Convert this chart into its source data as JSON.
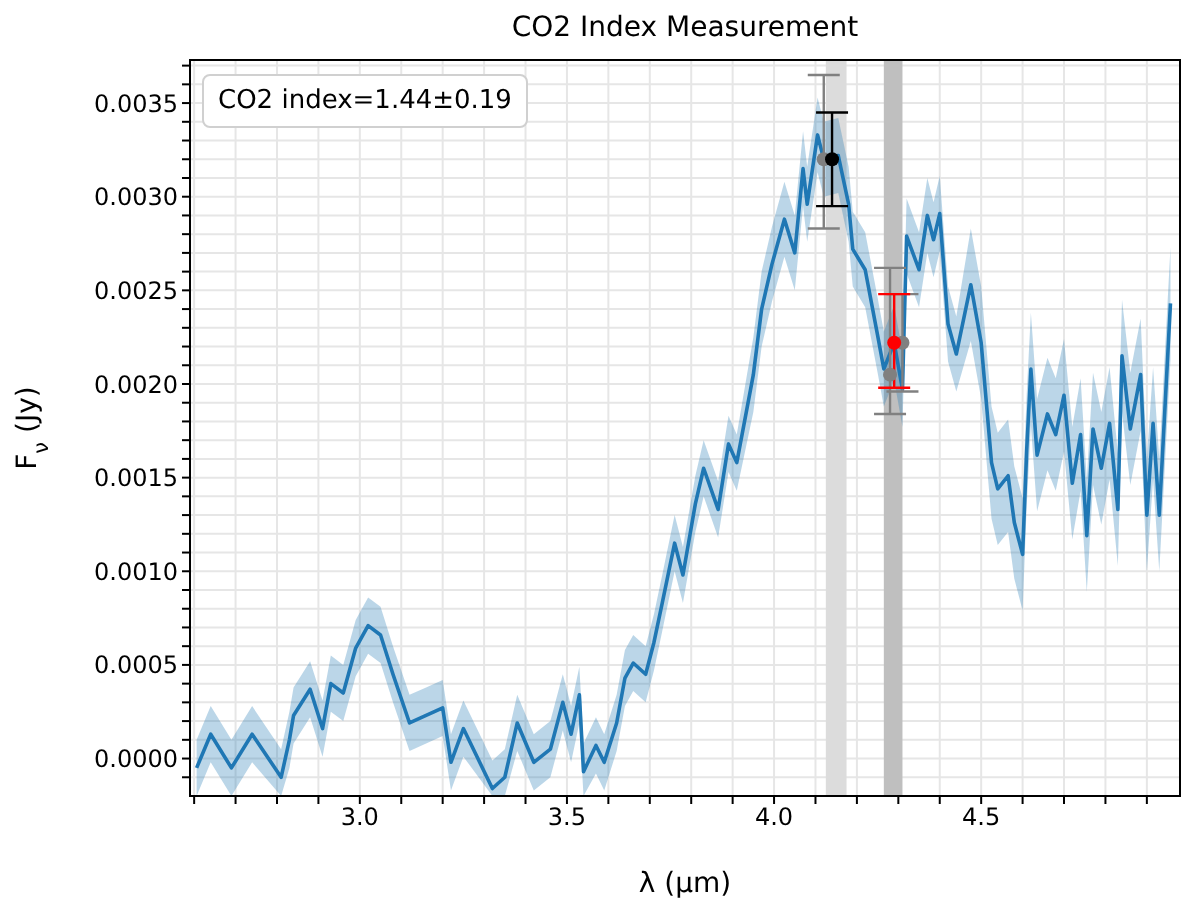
{
  "chart_data": {
    "type": "line",
    "title": "CO2 Index Measurement",
    "xlabel": "λ (μm)",
    "ylabel": "F$_{ν}$ (Jy)",
    "annotations": [
      "CO2 index=1.44±0.19"
    ],
    "grid": true,
    "xlim": [
      2.59,
      4.98
    ],
    "xticks": [
      {
        "value": 2.6,
        "label": null
      },
      {
        "value": 2.7,
        "label": null
      },
      {
        "value": 2.8,
        "label": null
      },
      {
        "value": 2.9,
        "label": null
      },
      {
        "value": 3,
        "label": "3.0"
      },
      {
        "value": 3.1,
        "label": null
      },
      {
        "value": 3.2,
        "label": null
      },
      {
        "value": 3.3,
        "label": null
      },
      {
        "value": 3.4,
        "label": null
      },
      3.5,
      {
        "value": 3.6,
        "label": null
      },
      {
        "value": 3.7,
        "label": null
      },
      {
        "value": 3.8,
        "label": null
      },
      {
        "value": 3.9,
        "label": null
      },
      {
        "value": 4,
        "label": "4.0"
      },
      {
        "value": 4.1,
        "label": null
      },
      {
        "value": 4.2,
        "label": null
      },
      {
        "value": 4.3,
        "label": null
      },
      {
        "value": 4.4,
        "label": null
      },
      4.5,
      {
        "value": 4.6,
        "label": null
      },
      {
        "value": 4.7,
        "label": null
      },
      {
        "value": 4.8,
        "label": null
      },
      {
        "value": 4.9,
        "label": null
      }
    ],
    "ylim": [
      -0.0002,
      0.00373
    ],
    "yticks": [
      {
        "value": -0.0001,
        "label": null
      },
      {
        "value": 0,
        "label": "0.0000"
      },
      {
        "value": 0.0001,
        "label": null
      },
      {
        "value": 0.0002,
        "label": null
      },
      {
        "value": 0.0003,
        "label": null
      },
      {
        "value": 0.0004,
        "label": null
      },
      {
        "value": 0.0005,
        "label": "0.0005"
      },
      {
        "value": 0.0006,
        "label": null
      },
      {
        "value": 0.0007,
        "label": null
      },
      {
        "value": 0.0008,
        "label": null
      },
      {
        "value": 0.0009,
        "label": null
      },
      {
        "value": 0.001,
        "label": "0.0010"
      },
      {
        "value": 0.0011,
        "label": null
      },
      {
        "value": 0.0012,
        "label": null
      },
      {
        "value": 0.0013,
        "label": null
      },
      {
        "value": 0.0014,
        "label": null
      },
      {
        "value": 0.0015,
        "label": "0.0015"
      },
      {
        "value": 0.0016,
        "label": null
      },
      {
        "value": 0.0017,
        "label": null
      },
      {
        "value": 0.0018,
        "label": null
      },
      {
        "value": 0.0019,
        "label": null
      },
      {
        "value": 0.002,
        "label": "0.0020"
      },
      {
        "value": 0.0021,
        "label": null
      },
      {
        "value": 0.0022,
        "label": null
      },
      {
        "value": 0.0023,
        "label": null
      },
      {
        "value": 0.0024,
        "label": null
      },
      {
        "value": 0.0025,
        "label": "0.0025"
      },
      {
        "value": 0.0026,
        "label": null
      },
      {
        "value": 0.0027,
        "label": null
      },
      {
        "value": 0.0028,
        "label": null
      },
      {
        "value": 0.0029,
        "label": null
      },
      {
        "value": 0.003,
        "label": "0.0030"
      },
      {
        "value": 0.0031,
        "label": null
      },
      {
        "value": 0.0032,
        "label": null
      },
      {
        "value": 0.0033,
        "label": null
      },
      {
        "value": 0.0034,
        "label": null
      },
      {
        "value": 0.0035,
        "label": "0.0035"
      },
      {
        "value": 0.0036,
        "label": null
      },
      {
        "value": 0.0037,
        "label": null
      }
    ],
    "bands": [
      {
        "axis": "x",
        "from": 4.125,
        "to": 4.175,
        "color": "#dcdcdc"
      },
      {
        "axis": "x",
        "from": 4.265,
        "to": 4.31,
        "color": "#bfbfbf"
      }
    ],
    "series": [
      {
        "color": "#1f77b4",
        "marker": "none",
        "line_style": "solid",
        "x": [
          2.606,
          2.64,
          2.69,
          2.74,
          2.81,
          2.83,
          2.84,
          2.88,
          2.91,
          2.93,
          2.96,
          2.99,
          3.02,
          3.05,
          3.08,
          3.12,
          3.16,
          3.2,
          3.22,
          3.25,
          3.32,
          3.35,
          3.38,
          3.42,
          3.46,
          3.49,
          3.51,
          3.53,
          3.54,
          3.57,
          3.59,
          3.62,
          3.64,
          3.66,
          3.69,
          3.71,
          3.73,
          3.76,
          3.78,
          3.81,
          3.83,
          3.865,
          3.89,
          3.91,
          3.95,
          3.97,
          3.995,
          4.025,
          4.05,
          4.07,
          4.08,
          4.105,
          4.12,
          4.155,
          4.18,
          4.19,
          4.22,
          4.25,
          4.265,
          4.29,
          4.31,
          4.32,
          4.35,
          4.37,
          4.385,
          4.4,
          4.42,
          4.44,
          4.475,
          4.5,
          4.525,
          4.54,
          4.565,
          4.58,
          4.6,
          4.61,
          4.62,
          4.635,
          4.66,
          4.68,
          4.7,
          4.72,
          4.74,
          4.755,
          4.77,
          4.79,
          4.81,
          4.83,
          4.84,
          4.86,
          4.885,
          4.9,
          4.915,
          4.93,
          4.957
        ],
        "values": [
          -5e-05,
          0.00013,
          -5e-05,
          0.00013,
          -0.0001,
          0.0001,
          0.00023,
          0.00037,
          0.00016,
          0.0004,
          0.00035,
          0.00059,
          0.00071,
          0.00066,
          0.00045,
          0.00019,
          0.00023,
          0.00027,
          -2e-05,
          0.00016,
          -0.00016,
          -0.0001,
          0.00019,
          -2e-05,
          5e-05,
          0.0003,
          0.00013,
          0.00034,
          -7e-05,
          7e-05,
          -2e-05,
          0.00019,
          0.00043,
          0.00051,
          0.00045,
          0.00062,
          0.00083,
          0.00115,
          0.00098,
          0.00136,
          0.00155,
          0.00133,
          0.00168,
          0.00158,
          0.00205,
          0.0024,
          0.00264,
          0.00288,
          0.0027,
          0.00315,
          0.00296,
          0.00333,
          0.0032,
          0.00322,
          0.00296,
          0.00272,
          0.00261,
          0.00226,
          0.00208,
          0.00222,
          0.00197,
          0.00279,
          0.00261,
          0.0029,
          0.00277,
          0.00291,
          0.00232,
          0.00216,
          0.00253,
          0.00222,
          0.00158,
          0.00144,
          0.00151,
          0.00126,
          0.00109,
          0.00165,
          0.00208,
          0.00162,
          0.00184,
          0.00173,
          0.00194,
          0.00147,
          0.00173,
          0.00119,
          0.00176,
          0.00155,
          0.00179,
          0.00133,
          0.00215,
          0.00176,
          0.00205,
          0.0013,
          0.00179,
          0.0013,
          0.00243
        ],
        "lower": [
          -0.0002,
          -2e-05,
          -0.0002,
          -2e-05,
          -0.0002,
          -5e-05,
          8e-05,
          0.00022,
          1e-05,
          0.00025,
          0.0002,
          0.00044,
          0.00056,
          0.00051,
          0.0003,
          4e-05,
          8e-05,
          0.00012,
          -0.00017,
          1e-05,
          -0.0002,
          -0.0002,
          4e-05,
          -0.00017,
          -0.0001,
          0.00015,
          -2e-05,
          0.00019,
          -0.0002,
          -8e-05,
          -0.00017,
          4e-05,
          0.00028,
          0.00036,
          0.0003,
          0.00047,
          0.00068,
          0.001,
          0.00083,
          0.00121,
          0.0014,
          0.00118,
          0.00153,
          0.00143,
          0.00185,
          0.0022,
          0.00244,
          0.00268,
          0.0025,
          0.00295,
          0.00276,
          0.00313,
          0.003,
          0.00302,
          0.00276,
          0.00252,
          0.00241,
          0.00206,
          0.00188,
          0.00202,
          0.00177,
          0.00259,
          0.00241,
          0.0027,
          0.00257,
          0.00271,
          0.00212,
          0.00196,
          0.00223,
          0.00192,
          0.00128,
          0.00114,
          0.00121,
          0.00096,
          0.00079,
          0.00135,
          0.00178,
          0.00132,
          0.00154,
          0.00143,
          0.00164,
          0.00117,
          0.00143,
          0.00089,
          0.00146,
          0.00125,
          0.00149,
          0.00103,
          0.00185,
          0.00146,
          0.00175,
          0.001,
          0.00149,
          0.001,
          0.00213
        ],
        "upper": [
          0.0001,
          0.00028,
          0.0001,
          0.00028,
          5e-05,
          0.00025,
          0.00038,
          0.00052,
          0.00031,
          0.00055,
          0.0005,
          0.00074,
          0.00086,
          0.00081,
          0.0006,
          0.00034,
          0.00038,
          0.00042,
          0.00013,
          0.00031,
          -1e-05,
          5e-05,
          0.00034,
          0.00013,
          0.0002,
          0.00045,
          0.00028,
          0.00049,
          8e-05,
          0.00022,
          0.00013,
          0.00034,
          0.00058,
          0.00066,
          0.0006,
          0.00077,
          0.00098,
          0.0013,
          0.00113,
          0.00151,
          0.0017,
          0.00148,
          0.00183,
          0.00173,
          0.00225,
          0.0026,
          0.00284,
          0.00308,
          0.0029,
          0.00335,
          0.00316,
          0.00353,
          0.0034,
          0.00342,
          0.00316,
          0.00292,
          0.00281,
          0.00246,
          0.00228,
          0.00242,
          0.00217,
          0.00299,
          0.00281,
          0.0031,
          0.00297,
          0.00311,
          0.00252,
          0.00236,
          0.00283,
          0.00252,
          0.00188,
          0.00174,
          0.00181,
          0.00156,
          0.00139,
          0.00195,
          0.00238,
          0.00192,
          0.00214,
          0.00203,
          0.00224,
          0.00177,
          0.00203,
          0.00149,
          0.00206,
          0.00185,
          0.00209,
          0.00163,
          0.00245,
          0.00206,
          0.00235,
          0.0016,
          0.00209,
          0.0016,
          0.00273
        ]
      },
      {
        "type": "scatter",
        "color": "#808080",
        "marker": "circle",
        "x": [
          4.12,
          4.28,
          4.31
        ],
        "values": [
          0.0032,
          0.00205,
          0.00222
        ],
        "errors": [
          [
            0.00283,
            0.00365
          ],
          [
            0.00184,
            0.00262
          ],
          [
            0.00196,
            0.00248
          ]
        ]
      },
      {
        "type": "scatter",
        "color": "#000000",
        "marker": "circle",
        "x": [
          4.14
        ],
        "values": [
          0.0032
        ],
        "errors": [
          [
            0.00295,
            0.00345
          ]
        ]
      },
      {
        "type": "scatter",
        "color": "#ff0000",
        "marker": "circle",
        "x": [
          4.29
        ],
        "values": [
          0.00222
        ],
        "errors": [
          [
            0.00198,
            0.00248
          ]
        ]
      }
    ]
  }
}
